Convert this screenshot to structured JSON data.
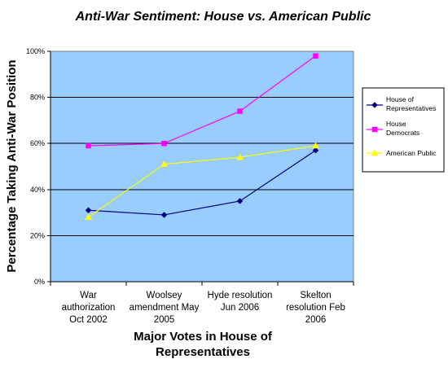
{
  "chart_data": {
    "type": "line",
    "title": "Anti-War Sentiment: House vs. American Public",
    "ylabel": "Percentage Taking Anti-War Position",
    "xlabel": [
      "Major Votes in House of",
      "Representatives"
    ],
    "categories": [
      [
        "War",
        "authorization",
        "Oct 2002"
      ],
      [
        "Woolsey",
        "amendment May",
        "2005"
      ],
      [
        "Hyde resolution",
        "Jun 2006"
      ],
      [
        "Skelton",
        "resolution    Feb",
        "2006"
      ]
    ],
    "ylim": [
      0,
      1
    ],
    "yticks": [
      0,
      0.2,
      0.4,
      0.6,
      0.8,
      1.0
    ],
    "ytick_labels": [
      "0%",
      "20%",
      "40%",
      "60%",
      "80%",
      "100%"
    ],
    "grid": "horizontal",
    "legend_position": "right",
    "plot_background": "#99ccff",
    "series": [
      {
        "name": [
          "House of",
          "Representatives"
        ],
        "color": "#000080",
        "marker": "diamond",
        "values": [
          0.31,
          0.29,
          0.35,
          0.57
        ]
      },
      {
        "name": [
          "House",
          "Democrats"
        ],
        "color": "#ff00ff",
        "marker": "square",
        "values": [
          0.59,
          0.6,
          0.74,
          0.98
        ]
      },
      {
        "name": [
          "American Public"
        ],
        "color": "#ffff00",
        "marker": "triangle",
        "values": [
          0.28,
          0.51,
          0.54,
          0.59
        ]
      }
    ]
  }
}
